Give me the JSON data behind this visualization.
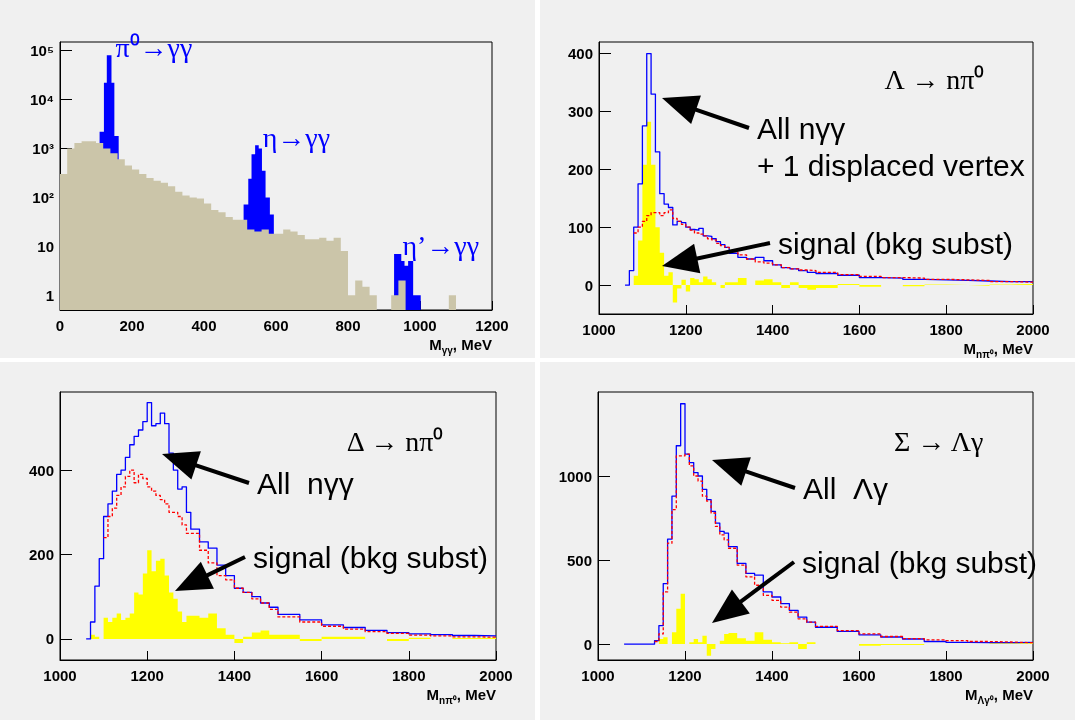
{
  "chart_data": [
    {
      "type": "area",
      "xlabel": "M$_{γγ}$, MeV",
      "xlim": [
        0,
        1200
      ],
      "xticks": [
        0,
        200,
        400,
        600,
        800,
        1000,
        1200
      ],
      "ylim": [
        0.5,
        150000
      ],
      "yticks": [
        1,
        10,
        {
          "value": 100,
          "label": "10²"
        },
        {
          "value": 1000,
          "label": "10³"
        },
        {
          "value": 10000,
          "label": "10⁴"
        },
        {
          "value": 100000,
          "label": "10⁵"
        }
      ],
      "log": "y",
      "series": [
        {
          "name": "π⁰→γγ",
          "color": "#0000ff",
          "x": [
            110,
            122,
            130,
            143,
            151,
            163
          ],
          "values": [
            2200,
            22000,
            80000,
            22000,
            1800,
            1800
          ]
        },
        {
          "name": "η→γγ",
          "color": "#0000ff",
          "x": [
            510,
            523,
            532,
            542,
            552,
            561,
            571,
            583,
            594
          ],
          "values": [
            72,
            240,
            760,
            1170,
            1000,
            350,
            100,
            45,
            45
          ]
        },
        {
          "name": "η’→γγ",
          "color": "#0000ff",
          "x": [
            928,
            940,
            948,
            957,
            967,
            981,
            1002
          ],
          "values": [
            7,
            7,
            5,
            4,
            5,
            1,
            1
          ]
        },
        {
          "color": "#cbc5a9",
          "x": [
            0,
            20,
            40,
            60,
            80,
            100,
            120,
            140,
            160,
            180,
            200,
            220,
            240,
            260,
            280,
            300,
            320,
            340,
            360,
            380,
            400,
            420,
            440,
            460,
            480,
            500,
            520,
            540,
            560,
            580,
            600,
            620,
            640,
            660,
            680,
            700,
            720,
            740,
            760,
            780,
            800,
            820,
            840,
            860,
            880
          ],
          "values": [
            300,
            1000,
            1300,
            1400,
            1400,
            1300,
            1000,
            800,
            600,
            450,
            370,
            300,
            250,
            220,
            200,
            170,
            130,
            110,
            100,
            95,
            75,
            55,
            50,
            40,
            35,
            35,
            22,
            20,
            22,
            18,
            18,
            22,
            20,
            17,
            14,
            14,
            15,
            13,
            15,
            8,
            1,
            2,
            1.5,
            1,
            1
          ]
        },
        {
          "color": "#cbc5a9",
          "x": [
            920,
            940,
            960
          ],
          "values": [
            1,
            2,
            2
          ]
        },
        {
          "color": "#cbc5a9",
          "x": [
            1080,
            1100
          ],
          "values": [
            1,
            1
          ]
        }
      ]
    },
    {
      "type": "step",
      "title": "Λ → nπ⁰",
      "xlabel": "M$_{nπ⁰}$, MeV",
      "xlim": [
        1000,
        2000
      ],
      "xticks": [
        1000,
        1200,
        1400,
        1600,
        1800,
        2000
      ],
      "ylim": [
        -50,
        420
      ],
      "yticks": [
        0,
        100,
        200,
        300,
        400
      ],
      "annotations": [
        "All nγγ\n+ 1 displaced vertex",
        "signal (bkg subst)"
      ],
      "series": [
        {
          "type": "area",
          "color": "#ffff00",
          "x": [
            1070,
            1080,
            1090,
            1100,
            1110,
            1120,
            1130,
            1140,
            1150,
            1160,
            1170,
            1180,
            1190,
            1200,
            1210,
            1220,
            1230,
            1240,
            1250,
            1260,
            1270,
            1280,
            1290,
            1300,
            1320,
            1340,
            1360,
            1380,
            1400,
            1420,
            1440,
            1460,
            1480,
            1500,
            1550,
            1600,
            1650,
            1700,
            1750,
            1800,
            1850,
            1900,
            1950,
            2000
          ],
          "values": [
            0,
            16,
            77,
            208,
            282,
            208,
            100,
            56,
            16,
            22,
            -30,
            -6,
            9,
            -11,
            12,
            10,
            5,
            15,
            10,
            5,
            0,
            -5,
            5,
            5,
            12,
            0,
            8,
            10,
            5,
            -5,
            5,
            -5,
            -8,
            -5,
            2,
            -3,
            0,
            -2,
            1,
            0,
            -1,
            1,
            2,
            2
          ]
        },
        {
          "color": "#0000ff",
          "x": [
            1060,
            1070,
            1080,
            1090,
            1100,
            1110,
            1120,
            1130,
            1140,
            1150,
            1160,
            1170,
            1180,
            1190,
            1200,
            1210,
            1220,
            1230,
            1240,
            1250,
            1260,
            1270,
            1280,
            1290,
            1300,
            1320,
            1340,
            1360,
            1380,
            1400,
            1420,
            1440,
            1460,
            1480,
            1500,
            1550,
            1600,
            1650,
            1700,
            1750,
            1800,
            1850,
            1900,
            1950,
            2000
          ],
          "values": [
            0,
            25,
            100,
            175,
            275,
            400,
            330,
            230,
            158,
            140,
            134,
            104,
            110,
            108,
            100,
            96,
            95,
            98,
            85,
            84,
            80,
            75,
            70,
            65,
            55,
            48,
            45,
            48,
            42,
            35,
            30,
            28,
            25,
            22,
            20,
            17,
            13,
            12,
            10,
            9,
            8,
            7,
            6,
            6,
            6
          ]
        },
        {
          "color": "#ff0000",
          "line_style": "dashed",
          "x": [
            1080,
            1090,
            1100,
            1110,
            1120,
            1130,
            1140,
            1150,
            1160,
            1170,
            1180,
            1190,
            1200,
            1210,
            1220,
            1230,
            1240,
            1250,
            1260,
            1270,
            1280,
            1290,
            1300,
            1320,
            1340,
            1360,
            1380,
            1400,
            1420,
            1440,
            1460,
            1480,
            1500,
            1550,
            1600,
            1650,
            1700,
            1750,
            1800,
            1850,
            1900,
            1950,
            2000
          ],
          "values": [
            90,
            100,
            110,
            120,
            125,
            125,
            120,
            125,
            130,
            115,
            110,
            105,
            100,
            95,
            90,
            88,
            85,
            80,
            78,
            72,
            68,
            65,
            58,
            52,
            45,
            40,
            38,
            35,
            30,
            28,
            26,
            25,
            22,
            18,
            15,
            13,
            12,
            10,
            9,
            8,
            6,
            5,
            5
          ]
        }
      ]
    },
    {
      "type": "step",
      "title": "Δ → nπ⁰",
      "xlabel": "M$_{nπ⁰}$, MeV",
      "xlim": [
        1000,
        2000
      ],
      "xticks": [
        1000,
        1200,
        1400,
        1600,
        1800,
        2000
      ],
      "ylim": [
        -50,
        585
      ],
      "yticks": [
        0,
        200,
        400
      ],
      "annotations": [
        "All  nγγ",
        "signal (bkg subst)"
      ],
      "series": [
        {
          "type": "area",
          "color": "#ffff00",
          "x": [
            1070,
            1080,
            1090,
            1100,
            1110,
            1120,
            1130,
            1140,
            1150,
            1160,
            1170,
            1180,
            1190,
            1200,
            1210,
            1220,
            1230,
            1240,
            1250,
            1260,
            1270,
            1280,
            1290,
            1300,
            1320,
            1340,
            1360,
            1380,
            1400,
            1420,
            1440,
            1460,
            1480,
            1500,
            1550,
            1600,
            1650,
            1700,
            1750,
            1800,
            1850,
            1900,
            1950,
            2000
          ],
          "values": [
            10,
            5,
            0,
            50,
            40,
            50,
            60,
            45,
            50,
            60,
            110,
            105,
            155,
            210,
            160,
            185,
            190,
            150,
            110,
            95,
            65,
            40,
            55,
            55,
            50,
            60,
            25,
            10,
            -10,
            5,
            15,
            20,
            10,
            10,
            -5,
            5,
            5,
            0,
            -5,
            3,
            0,
            2,
            3,
            3
          ]
        },
        {
          "color": "#0000ff",
          "x": [
            1060,
            1070,
            1080,
            1090,
            1100,
            1110,
            1120,
            1130,
            1140,
            1150,
            1160,
            1170,
            1180,
            1190,
            1200,
            1210,
            1220,
            1230,
            1240,
            1250,
            1260,
            1270,
            1280,
            1290,
            1300,
            1320,
            1340,
            1360,
            1380,
            1400,
            1420,
            1440,
            1460,
            1480,
            1500,
            1550,
            1600,
            1650,
            1700,
            1750,
            1800,
            1850,
            1900,
            1950,
            2000
          ],
          "values": [
            0,
            40,
            125,
            190,
            290,
            320,
            350,
            390,
            400,
            430,
            460,
            480,
            495,
            515,
            560,
            505,
            510,
            535,
            510,
            440,
            400,
            355,
            360,
            300,
            260,
            230,
            215,
            175,
            150,
            120,
            110,
            100,
            85,
            75,
            58,
            45,
            33,
            27,
            20,
            15,
            12,
            10,
            8,
            7,
            7
          ]
        },
        {
          "color": "#ff0000",
          "line_style": "dashed",
          "x": [
            1100,
            1110,
            1120,
            1130,
            1140,
            1150,
            1160,
            1170,
            1180,
            1190,
            1200,
            1210,
            1220,
            1230,
            1240,
            1250,
            1260,
            1270,
            1280,
            1290,
            1300,
            1320,
            1340,
            1360,
            1380,
            1400,
            1420,
            1440,
            1460,
            1480,
            1500,
            1550,
            1600,
            1650,
            1700,
            1750,
            1800,
            1850,
            1900,
            1950,
            2000
          ],
          "values": [
            240,
            290,
            310,
            340,
            360,
            385,
            400,
            370,
            390,
            380,
            360,
            350,
            340,
            330,
            320,
            300,
            300,
            290,
            270,
            250,
            250,
            210,
            180,
            150,
            140,
            120,
            110,
            95,
            85,
            70,
            52,
            40,
            30,
            23,
            17,
            13,
            9,
            7,
            5,
            4,
            4
          ]
        }
      ]
    },
    {
      "type": "step",
      "title": "Σ → Λγ",
      "xlabel": "M$_{Λγ⁰}$, MeV",
      "xlim": [
        1000,
        2000
      ],
      "xticks": [
        1000,
        1200,
        1400,
        1600,
        1800,
        2000
      ],
      "ylim": [
        -95,
        1500
      ],
      "yticks": [
        0,
        500,
        1000
      ],
      "annotations": [
        "All  Λγ",
        "signal (bkg subst)"
      ],
      "series": [
        {
          "type": "area",
          "color": "#ffff00",
          "x": [
            1130,
            1140,
            1150,
            1160,
            1170,
            1180,
            1190,
            1200,
            1210,
            1220,
            1230,
            1240,
            1250,
            1260,
            1270,
            1280,
            1290,
            1300,
            1320,
            1340,
            1360,
            1380,
            1400,
            1420,
            1440,
            1460,
            1480,
            1500,
            1550,
            1600,
            1650,
            1700,
            1750,
            1800,
            1850,
            1900,
            1950,
            2000
          ],
          "values": [
            0,
            30,
            40,
            0,
            70,
            210,
            300,
            0,
            10,
            30,
            10,
            50,
            -70,
            -30,
            0,
            20,
            60,
            65,
            35,
            20,
            70,
            25,
            10,
            5,
            10,
            -30,
            10,
            0,
            0,
            -10,
            -5,
            -5,
            0,
            0,
            0,
            5,
            5,
            5
          ]
        },
        {
          "color": "#0000ff",
          "x": [
            1060,
            1070,
            1080,
            1090,
            1100,
            1110,
            1120,
            1130,
            1140,
            1150,
            1160,
            1170,
            1180,
            1190,
            1200,
            1210,
            1220,
            1230,
            1240,
            1250,
            1260,
            1270,
            1280,
            1290,
            1300,
            1320,
            1340,
            1360,
            1380,
            1400,
            1420,
            1440,
            1460,
            1480,
            1500,
            1550,
            1600,
            1650,
            1700,
            1750,
            1800,
            1850,
            1900,
            1950,
            2000
          ],
          "values": [
            0,
            0,
            0,
            0,
            0,
            0,
            0,
            20,
            110,
            360,
            624,
            880,
            1180,
            1430,
            1130,
            1080,
            1020,
            1000,
            920,
            860,
            790,
            720,
            670,
            660,
            580,
            480,
            420,
            410,
            310,
            280,
            240,
            200,
            160,
            130,
            100,
            75,
            55,
            42,
            30,
            15,
            10,
            8,
            8,
            10,
            10
          ]
        },
        {
          "color": "#ff0000",
          "line_style": "dashed",
          "x": [
            1130,
            1140,
            1150,
            1160,
            1170,
            1180,
            1190,
            1200,
            1210,
            1220,
            1230,
            1240,
            1250,
            1260,
            1270,
            1280,
            1290,
            1300,
            1320,
            1340,
            1360,
            1380,
            1400,
            1420,
            1440,
            1460,
            1480,
            1500,
            1550,
            1600,
            1650,
            1700,
            1750,
            1800,
            1850,
            1900,
            1950,
            2000
          ],
          "values": [
            15,
            60,
            310,
            600,
            800,
            1120,
            1120,
            1130,
            1060,
            1000,
            970,
            880,
            850,
            780,
            700,
            650,
            620,
            570,
            470,
            400,
            350,
            290,
            260,
            220,
            190,
            150,
            130,
            105,
            80,
            60,
            45,
            32,
            25,
            20,
            15,
            12,
            8,
            8
          ]
        }
      ]
    }
  ]
}
